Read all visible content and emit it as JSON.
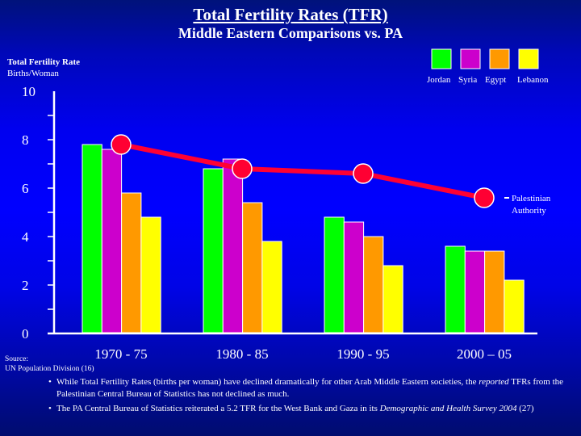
{
  "page": {
    "title": "Total Fertility Rates (TFR)",
    "subtitle": "Middle Eastern Comparisons vs. PA",
    "source_label": "Source:",
    "source_text": "UN Population Division (16)",
    "notes": [
      {
        "bullet": "•",
        "parts": [
          {
            "text": "While Total Fertility Rates (births per woman) have declined dramatically for other Arab Middle Eastern societies, the ",
            "italic": false
          },
          {
            "text": "reported",
            "italic": true
          },
          {
            "text": " TFRs from the Palestinian Central Bureau of Statistics has not declined as much.",
            "italic": false
          }
        ]
      },
      {
        "bullet": "•",
        "parts": [
          {
            "text": "The PA Central Bureau of Statistics reiterated a 5.2 TFR for the West Bank and Gaza in its ",
            "italic": false
          },
          {
            "text": "Demographic and Health Survey 2004",
            "italic": true
          },
          {
            "text": " (27)",
            "italic": false
          }
        ]
      }
    ]
  },
  "chart_data": {
    "type": "bar",
    "title": "Total Fertility Rates (TFR)",
    "subtitle": "Middle Eastern Comparisons vs. PA",
    "ylabel": "Total Fertility Rate",
    "ylabel_unit": "Births/Woman",
    "xlabel": "",
    "ylim": [
      0,
      10
    ],
    "yticks": [
      0,
      2,
      4,
      6,
      8,
      10
    ],
    "minor_yticks": [
      1,
      3,
      5,
      7,
      9
    ],
    "grid": false,
    "legend_position": "top-right",
    "categories": [
      "1970 - 75",
      "1980 - 85",
      "1990 - 95",
      "2000 – 05"
    ],
    "series": [
      {
        "name": "Jordan",
        "color": "#00ff00",
        "values": [
          7.8,
          6.8,
          4.8,
          3.6
        ]
      },
      {
        "name": "Syria",
        "color": "#cc00cc",
        "values": [
          7.6,
          7.2,
          4.6,
          3.4
        ]
      },
      {
        "name": "Egypt",
        "color": "#ff9900",
        "values": [
          5.8,
          5.4,
          4.0,
          3.4
        ]
      },
      {
        "name": "Lebanon",
        "color": "#ffff00",
        "values": [
          4.8,
          3.8,
          2.8,
          2.2
        ]
      }
    ],
    "line_series": {
      "name": "Palestinian Authority",
      "label_lines": [
        "Palestinian",
        "Authority"
      ],
      "type": "line",
      "color": "#ff0033",
      "values": [
        7.8,
        6.8,
        6.6,
        5.6
      ]
    }
  }
}
